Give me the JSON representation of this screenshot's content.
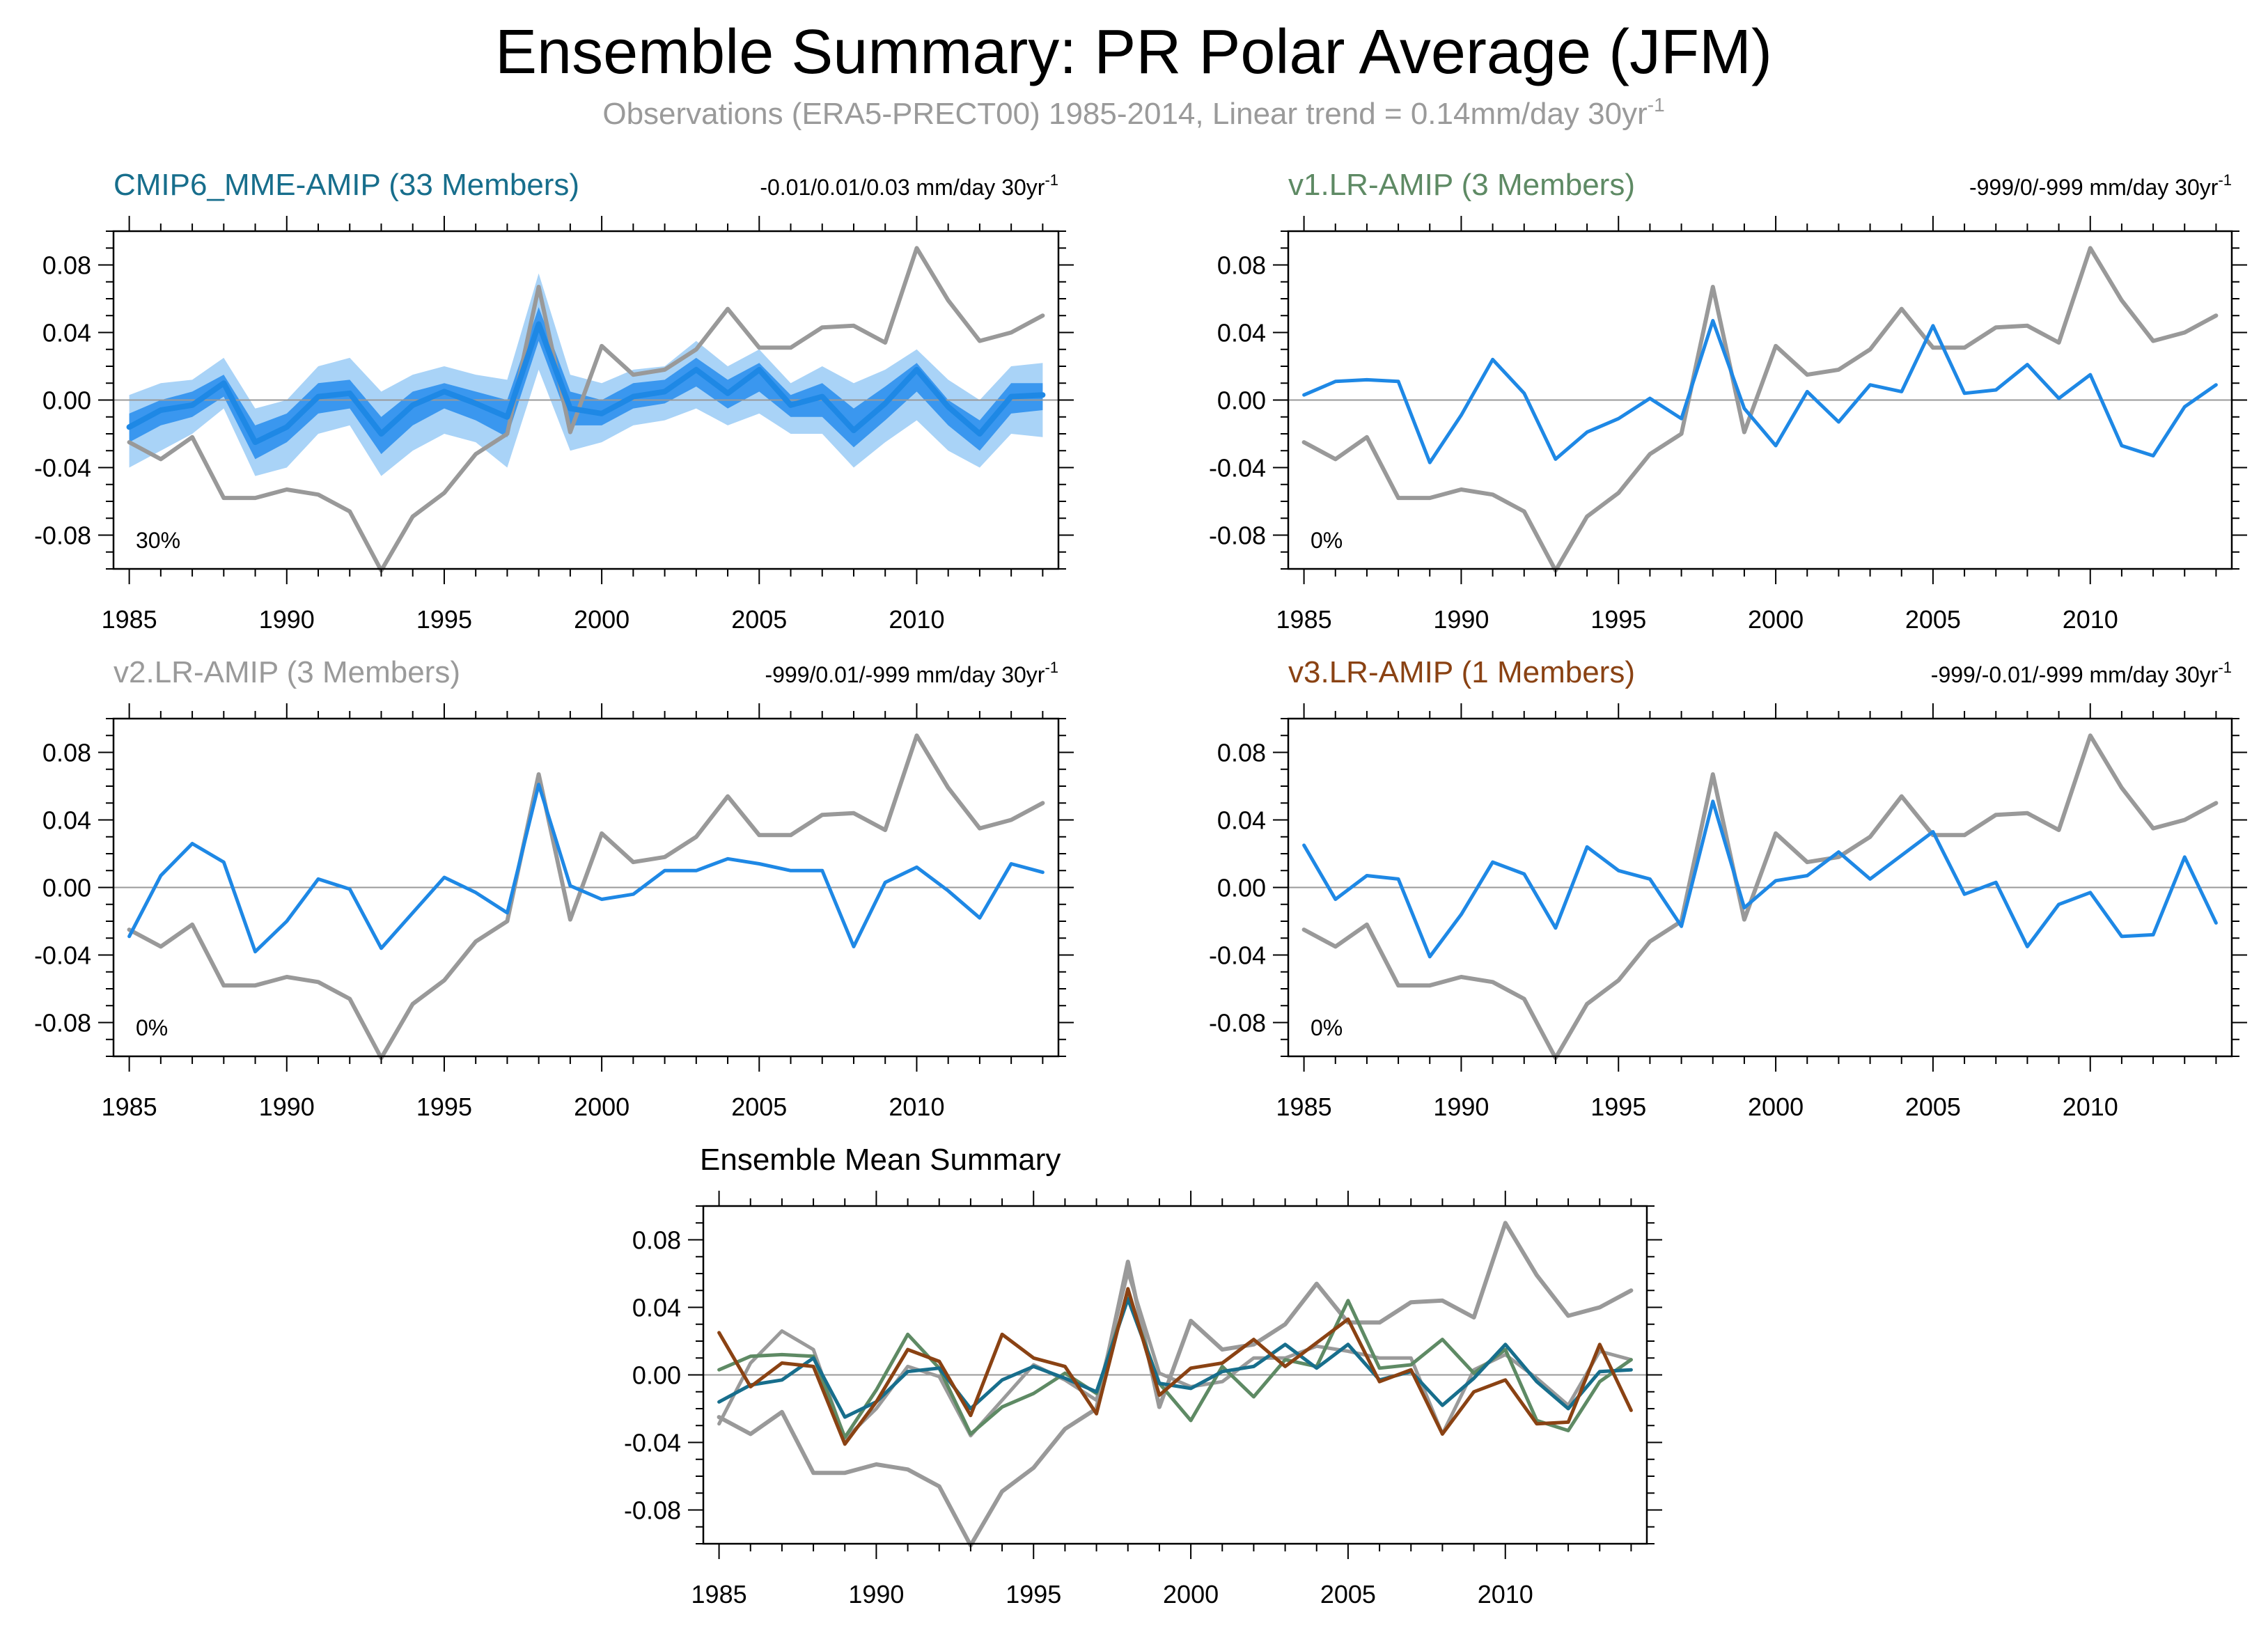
{
  "title": "Ensemble Summary: PR Polar Average (JFM)",
  "subtitle": {
    "text": "Observations (ERA5-PRECT00) 1985-2014, Linear trend = 0.14mm/day 30yr",
    "superscript": "-1"
  },
  "colors": {
    "observations": "#999999",
    "model_line": "#1e88e5",
    "cmip6": "#176e8c",
    "v1": "#5e8a64",
    "v2": "#9a9a9a",
    "v3": "#8a4213",
    "band_outer": "#a9d3f7",
    "band_inner": "#3a97ef"
  },
  "chart_data": [
    {
      "type": "line",
      "panel": "cmip6",
      "title": "CMIP6_MME-AMIP (33 Members)",
      "title_color": "#176e8c",
      "trend_text": "-0.01/0.01/0.03 mm/day 30yr",
      "trend_sup": "-1",
      "percent_label": "30%",
      "x": [
        1985,
        1986,
        1987,
        1988,
        1989,
        1990,
        1991,
        1992,
        1993,
        1994,
        1995,
        1996,
        1997,
        1998,
        1999,
        2000,
        2001,
        2002,
        2003,
        2004,
        2005,
        2006,
        2007,
        2008,
        2009,
        2010,
        2011,
        2012,
        2013,
        2014
      ],
      "x_ticks": [
        1985,
        1990,
        1995,
        2000,
        2005,
        2010
      ],
      "y_ticks": [
        0.08,
        0.04,
        0.0,
        -0.04,
        -0.08
      ],
      "y_tick_labels": [
        "0.08",
        "0.04",
        "0.00",
        "-0.04",
        "-0.08"
      ],
      "ylim": [
        -0.1,
        0.1
      ],
      "xlim": [
        1984.5,
        2014.5
      ],
      "band_outer": {
        "upper": [
          0.003,
          0.01,
          0.012,
          0.025,
          -0.005,
          0.0,
          0.02,
          0.025,
          0.005,
          0.015,
          0.02,
          0.015,
          0.012,
          0.075,
          0.015,
          0.01,
          0.018,
          0.02,
          0.035,
          0.02,
          0.03,
          0.01,
          0.02,
          0.01,
          0.018,
          0.03,
          0.012,
          0.0,
          0.02,
          0.022
        ],
        "lower": [
          -0.04,
          -0.03,
          -0.02,
          -0.005,
          -0.045,
          -0.04,
          -0.02,
          -0.015,
          -0.045,
          -0.03,
          -0.02,
          -0.025,
          -0.04,
          0.018,
          -0.03,
          -0.025,
          -0.015,
          -0.012,
          -0.005,
          -0.015,
          -0.008,
          -0.02,
          -0.02,
          -0.04,
          -0.025,
          -0.012,
          -0.03,
          -0.04,
          -0.02,
          -0.022
        ]
      },
      "band_inner": {
        "upper": [
          -0.008,
          0.0,
          0.005,
          0.015,
          -0.015,
          -0.008,
          0.01,
          0.012,
          -0.01,
          0.005,
          0.01,
          0.005,
          0.0,
          0.055,
          0.005,
          0.0,
          0.01,
          0.012,
          0.025,
          0.012,
          0.022,
          0.003,
          0.01,
          -0.005,
          0.008,
          0.022,
          0.0,
          -0.012,
          0.01,
          0.01
        ],
        "lower": [
          -0.025,
          -0.015,
          -0.01,
          0.002,
          -0.035,
          -0.025,
          -0.008,
          -0.005,
          -0.032,
          -0.015,
          -0.005,
          -0.012,
          -0.022,
          0.035,
          -0.015,
          -0.015,
          -0.005,
          -0.002,
          0.008,
          -0.005,
          0.005,
          -0.01,
          -0.01,
          -0.028,
          -0.012,
          0.005,
          -0.015,
          -0.03,
          -0.008,
          -0.006
        ]
      },
      "series": [
        {
          "name": "ERA5-PRECT00",
          "color": "#999999",
          "values": [
            -0.025,
            -0.035,
            -0.022,
            -0.058,
            -0.058,
            -0.053,
            -0.056,
            -0.066,
            -0.101,
            -0.069,
            -0.055,
            -0.032,
            -0.02,
            0.067,
            -0.019,
            0.032,
            0.015,
            0.018,
            0.03,
            0.054,
            0.031,
            0.031,
            0.043,
            0.044,
            0.034,
            0.09,
            0.059,
            0.035,
            0.04,
            0.05
          ]
        },
        {
          "name": "CMIP6_MME-AMIP",
          "color": "#1e88e5",
          "width": 8,
          "values": [
            -0.016,
            -0.006,
            -0.003,
            0.01,
            -0.025,
            -0.016,
            0.002,
            0.004,
            -0.02,
            -0.003,
            0.005,
            -0.002,
            -0.01,
            0.045,
            -0.005,
            -0.008,
            0.002,
            0.005,
            0.018,
            0.004,
            0.018,
            -0.003,
            0.002,
            -0.018,
            -0.002,
            0.018,
            -0.004,
            -0.02,
            0.002,
            0.003
          ]
        }
      ]
    },
    {
      "type": "line",
      "panel": "v1",
      "title": "v1.LR-AMIP (3 Members)",
      "title_color": "#5e8a64",
      "trend_text": "-999/0/-999 mm/day 30yr",
      "trend_sup": "-1",
      "percent_label": "0%",
      "x": [
        1985,
        1986,
        1987,
        1988,
        1989,
        1990,
        1991,
        1992,
        1993,
        1994,
        1995,
        1996,
        1997,
        1998,
        1999,
        2000,
        2001,
        2002,
        2003,
        2004,
        2005,
        2006,
        2007,
        2008,
        2009,
        2010,
        2011,
        2012,
        2013,
        2014
      ],
      "x_ticks": [
        1985,
        1990,
        1995,
        2000,
        2005,
        2010
      ],
      "y_ticks": [
        0.08,
        0.04,
        0.0,
        -0.04,
        -0.08
      ],
      "y_tick_labels": [
        "0.08",
        "0.04",
        "0.00",
        "-0.04",
        "-0.08"
      ],
      "ylim": [
        -0.1,
        0.1
      ],
      "xlim": [
        1984.5,
        2014.5
      ],
      "series": [
        {
          "name": "ERA5-PRECT00",
          "color": "#999999",
          "values": [
            -0.025,
            -0.035,
            -0.022,
            -0.058,
            -0.058,
            -0.053,
            -0.056,
            -0.066,
            -0.101,
            -0.069,
            -0.055,
            -0.032,
            -0.02,
            0.067,
            -0.019,
            0.032,
            0.015,
            0.018,
            0.03,
            0.054,
            0.031,
            0.031,
            0.043,
            0.044,
            0.034,
            0.09,
            0.059,
            0.035,
            0.04,
            0.05
          ]
        },
        {
          "name": "v1.LR-AMIP",
          "color": "#1e88e5",
          "width": 5,
          "values": [
            0.003,
            0.011,
            0.012,
            0.011,
            -0.037,
            -0.009,
            0.024,
            0.004,
            -0.035,
            -0.019,
            -0.011,
            0.001,
            -0.011,
            0.047,
            -0.005,
            -0.027,
            0.005,
            -0.013,
            0.009,
            0.005,
            0.044,
            0.004,
            0.006,
            0.021,
            0.001,
            0.015,
            -0.027,
            -0.033,
            -0.004,
            0.009
          ]
        }
      ]
    },
    {
      "type": "line",
      "panel": "v2",
      "title": "v2.LR-AMIP (3 Members)",
      "title_color": "#9a9a9a",
      "trend_text": "-999/0.01/-999 mm/day 30yr",
      "trend_sup": "-1",
      "percent_label": "0%",
      "x": [
        1985,
        1986,
        1987,
        1988,
        1989,
        1990,
        1991,
        1992,
        1993,
        1994,
        1995,
        1996,
        1997,
        1998,
        1999,
        2000,
        2001,
        2002,
        2003,
        2004,
        2005,
        2006,
        2007,
        2008,
        2009,
        2010,
        2011,
        2012,
        2013,
        2014
      ],
      "x_ticks": [
        1985,
        1990,
        1995,
        2000,
        2005,
        2010
      ],
      "y_ticks": [
        0.08,
        0.04,
        0.0,
        -0.04,
        -0.08
      ],
      "y_tick_labels": [
        "0.08",
        "0.04",
        "0.00",
        "-0.04",
        "-0.08"
      ],
      "ylim": [
        -0.1,
        0.1
      ],
      "xlim": [
        1984.5,
        2014.5
      ],
      "series": [
        {
          "name": "ERA5-PRECT00",
          "color": "#999999",
          "values": [
            -0.025,
            -0.035,
            -0.022,
            -0.058,
            -0.058,
            -0.053,
            -0.056,
            -0.066,
            -0.101,
            -0.069,
            -0.055,
            -0.032,
            -0.02,
            0.067,
            -0.019,
            0.032,
            0.015,
            0.018,
            0.03,
            0.054,
            0.031,
            0.031,
            0.043,
            0.044,
            0.034,
            0.09,
            0.059,
            0.035,
            0.04,
            0.05
          ]
        },
        {
          "name": "v2.LR-AMIP",
          "color": "#1e88e5",
          "width": 5,
          "values": [
            -0.029,
            0.007,
            0.026,
            0.015,
            -0.038,
            -0.02,
            0.005,
            -0.001,
            -0.036,
            -0.015,
            0.006,
            -0.003,
            -0.015,
            0.061,
            0.001,
            -0.007,
            -0.004,
            0.01,
            0.01,
            0.017,
            0.014,
            0.01,
            0.01,
            -0.035,
            0.003,
            0.012,
            -0.002,
            -0.018,
            0.014,
            0.009
          ]
        }
      ]
    },
    {
      "type": "line",
      "panel": "v3",
      "title": "v3.LR-AMIP (1 Members)",
      "title_color": "#8a4213",
      "trend_text": "-999/-0.01/-999 mm/day 30yr",
      "trend_sup": "-1",
      "percent_label": "0%",
      "x": [
        1985,
        1986,
        1987,
        1988,
        1989,
        1990,
        1991,
        1992,
        1993,
        1994,
        1995,
        1996,
        1997,
        1998,
        1999,
        2000,
        2001,
        2002,
        2003,
        2004,
        2005,
        2006,
        2007,
        2008,
        2009,
        2010,
        2011,
        2012,
        2013,
        2014
      ],
      "x_ticks": [
        1985,
        1990,
        1995,
        2000,
        2005,
        2010
      ],
      "y_ticks": [
        0.08,
        0.04,
        0.0,
        -0.04,
        -0.08
      ],
      "y_tick_labels": [
        "0.08",
        "0.04",
        "0.00",
        "-0.04",
        "-0.08"
      ],
      "ylim": [
        -0.1,
        0.1
      ],
      "xlim": [
        1984.5,
        2014.5
      ],
      "series": [
        {
          "name": "ERA5-PRECT00",
          "color": "#999999",
          "values": [
            -0.025,
            -0.035,
            -0.022,
            -0.058,
            -0.058,
            -0.053,
            -0.056,
            -0.066,
            -0.101,
            -0.069,
            -0.055,
            -0.032,
            -0.02,
            0.067,
            -0.019,
            0.032,
            0.015,
            0.018,
            0.03,
            0.054,
            0.031,
            0.031,
            0.043,
            0.044,
            0.034,
            0.09,
            0.059,
            0.035,
            0.04,
            0.05
          ]
        },
        {
          "name": "v3.LR-AMIP",
          "color": "#1e88e5",
          "width": 5,
          "values": [
            0.025,
            -0.007,
            0.007,
            0.005,
            -0.041,
            -0.016,
            0.015,
            0.008,
            -0.024,
            0.024,
            0.01,
            0.005,
            -0.023,
            0.051,
            -0.012,
            0.004,
            0.007,
            0.021,
            0.005,
            0.019,
            0.033,
            -0.004,
            0.003,
            -0.035,
            -0.01,
            -0.003,
            -0.029,
            -0.028,
            0.018,
            -0.021
          ]
        }
      ]
    },
    {
      "type": "line",
      "panel": "summary",
      "title": "Ensemble Mean Summary",
      "title_color": "#000000",
      "x": [
        1985,
        1986,
        1987,
        1988,
        1989,
        1990,
        1991,
        1992,
        1993,
        1994,
        1995,
        1996,
        1997,
        1998,
        1999,
        2000,
        2001,
        2002,
        2003,
        2004,
        2005,
        2006,
        2007,
        2008,
        2009,
        2010,
        2011,
        2012,
        2013,
        2014
      ],
      "x_ticks": [
        1985,
        1990,
        1995,
        2000,
        2005,
        2010
      ],
      "y_ticks": [
        0.08,
        0.04,
        0.0,
        -0.04,
        -0.08
      ],
      "y_tick_labels": [
        "0.08",
        "0.04",
        "0.00",
        "-0.04",
        "-0.08"
      ],
      "ylim": [
        -0.1,
        0.1
      ],
      "xlim": [
        1984.5,
        2014.5
      ],
      "series": [
        {
          "name": "ERA5-PRECT00",
          "color": "#999999",
          "values": [
            -0.025,
            -0.035,
            -0.022,
            -0.058,
            -0.058,
            -0.053,
            -0.056,
            -0.066,
            -0.101,
            -0.069,
            -0.055,
            -0.032,
            -0.02,
            0.067,
            -0.019,
            0.032,
            0.015,
            0.018,
            0.03,
            0.054,
            0.031,
            0.031,
            0.043,
            0.044,
            0.034,
            0.09,
            0.059,
            0.035,
            0.04,
            0.05
          ]
        },
        {
          "name": "v2.LR-AMIP",
          "color": "#9a9a9a",
          "width": 5,
          "values": [
            -0.029,
            0.007,
            0.026,
            0.015,
            -0.038,
            -0.02,
            0.005,
            -0.001,
            -0.036,
            -0.015,
            0.006,
            -0.003,
            -0.015,
            0.061,
            0.001,
            -0.007,
            -0.004,
            0.01,
            0.01,
            0.017,
            0.014,
            0.01,
            0.01,
            -0.035,
            0.003,
            0.012,
            -0.002,
            -0.018,
            0.014,
            0.009
          ]
        },
        {
          "name": "v1.LR-AMIP",
          "color": "#5e8a64",
          "width": 5,
          "values": [
            0.003,
            0.011,
            0.012,
            0.011,
            -0.037,
            -0.009,
            0.024,
            0.004,
            -0.035,
            -0.019,
            -0.011,
            0.001,
            -0.011,
            0.047,
            -0.005,
            -0.027,
            0.005,
            -0.013,
            0.009,
            0.005,
            0.044,
            0.004,
            0.006,
            0.021,
            0.001,
            0.015,
            -0.027,
            -0.033,
            -0.004,
            0.009
          ]
        },
        {
          "name": "CMIP6_MME-AMIP",
          "color": "#176e8c",
          "width": 5,
          "values": [
            -0.016,
            -0.006,
            -0.003,
            0.01,
            -0.025,
            -0.016,
            0.002,
            0.004,
            -0.02,
            -0.003,
            0.005,
            -0.002,
            -0.01,
            0.045,
            -0.005,
            -0.008,
            0.002,
            0.005,
            0.018,
            0.004,
            0.018,
            -0.003,
            0.002,
            -0.018,
            -0.002,
            0.018,
            -0.004,
            -0.02,
            0.002,
            0.003
          ]
        },
        {
          "name": "v3.LR-AMIP",
          "color": "#8a4213",
          "width": 5,
          "values": [
            0.025,
            -0.007,
            0.007,
            0.005,
            -0.041,
            -0.016,
            0.015,
            0.008,
            -0.024,
            0.024,
            0.01,
            0.005,
            -0.023,
            0.051,
            -0.012,
            0.004,
            0.007,
            0.021,
            0.005,
            0.019,
            0.033,
            -0.004,
            0.003,
            -0.035,
            -0.01,
            -0.003,
            -0.029,
            -0.028,
            0.018,
            -0.021
          ]
        }
      ]
    }
  ]
}
